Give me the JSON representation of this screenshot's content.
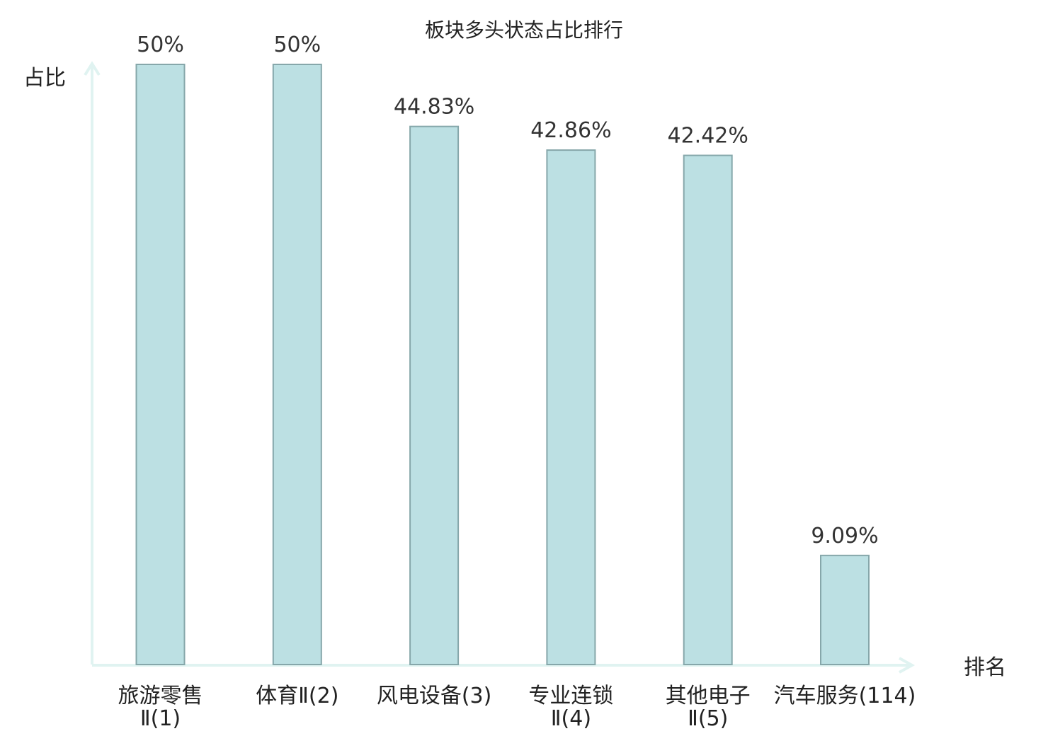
{
  "chart_data": {
    "type": "bar",
    "title": "板块多头状态占比排行",
    "ylabel": "占比",
    "xlabel": "排名",
    "categories": [
      [
        "旅游零售",
        "Ⅱ(1)"
      ],
      [
        "体育Ⅱ(2)"
      ],
      [
        "风电设备(3)"
      ],
      [
        "专业连锁",
        "Ⅱ(4)"
      ],
      [
        "其他电子",
        "Ⅱ(5)"
      ],
      [
        "汽车服务(114)"
      ]
    ],
    "values": [
      50,
      50,
      44.83,
      42.86,
      42.42,
      9.09
    ],
    "value_labels": [
      "50%",
      "50%",
      "44.83%",
      "42.86%",
      "42.42%",
      "9.09%"
    ],
    "highlight_index": 5,
    "ylim": [
      0,
      50
    ],
    "grid": false,
    "colors": {
      "bar_fill": "#bce0e3",
      "bar_stroke": "#86a7aa",
      "axis": "#e0f3f1",
      "highlight_text": "#e8211c",
      "text": "#222222"
    }
  }
}
